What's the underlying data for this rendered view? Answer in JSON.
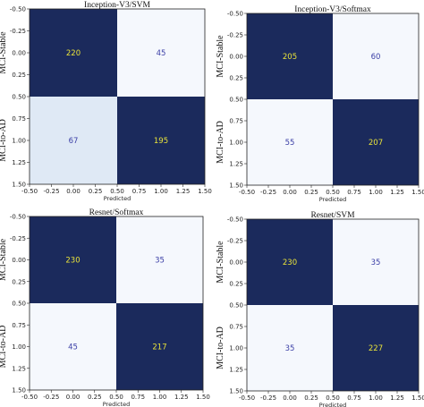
{
  "chart_data": [
    {
      "type": "heatmap",
      "title": "Inception-V3/SVM",
      "xlabel": "Predicted",
      "ylabel_ticks": [
        "MCI-Stable",
        "MCI-to-AD"
      ],
      "matrix": [
        [
          220,
          45
        ],
        [
          67,
          195
        ]
      ],
      "xlim": [
        -0.5,
        1.5
      ],
      "ylim": [
        1.5,
        -0.5
      ],
      "ticks": [
        "-0.50",
        "-0.25",
        "0.00",
        "0.25",
        "0.50",
        "0.75",
        "1.00",
        "1.25",
        "1.50"
      ]
    },
    {
      "type": "heatmap",
      "title": "Inception-V3/Softmax",
      "xlabel": "Predicted",
      "ylabel_ticks": [
        "MCI-Stable",
        "MCI-to-AD"
      ],
      "matrix": [
        [
          205,
          60
        ],
        [
          55,
          207
        ]
      ],
      "xlim": [
        -0.5,
        1.5
      ],
      "ylim": [
        1.5,
        -0.5
      ],
      "ticks": [
        "-0.50",
        "-0.25",
        "0.00",
        "0.25",
        "0.50",
        "0.75",
        "1.00",
        "1.25",
        "1.50"
      ]
    },
    {
      "type": "heatmap",
      "title": "Resnet/Softmax",
      "xlabel": "Predicted",
      "ylabel_ticks": [
        "MCI-Stable",
        "MCI-to-AD"
      ],
      "matrix": [
        [
          230,
          35
        ],
        [
          45,
          217
        ]
      ],
      "xlim": [
        -0.5,
        1.5
      ],
      "ylim": [
        1.5,
        -0.5
      ],
      "ticks": [
        "-0.50",
        "-0.25",
        "0.00",
        "0.25",
        "0.50",
        "0.75",
        "1.00",
        "1.25",
        "1.50"
      ]
    },
    {
      "type": "heatmap",
      "title": "Resnet/SVM",
      "xlabel": "Predicted",
      "ylabel_ticks": [
        "MCI-Stable",
        "MCI-to-AD"
      ],
      "matrix": [
        [
          230,
          35
        ],
        [
          35,
          227
        ]
      ],
      "xlim": [
        -0.5,
        1.5
      ],
      "ylim": [
        1.5,
        -0.5
      ],
      "ticks": [
        "-0.50",
        "-0.25",
        "0.00",
        "0.25",
        "0.50",
        "0.75",
        "1.00",
        "1.25",
        "1.50"
      ]
    }
  ],
  "colors": {
    "dark_navy": "#1b2a5c",
    "mid_blue": "#1b5a9a",
    "very_light": "#f5f8fd",
    "light_blue": "#dfe9f5",
    "text_on_dark": "#e8e23a",
    "text_on_light": "#3b3fa6"
  }
}
